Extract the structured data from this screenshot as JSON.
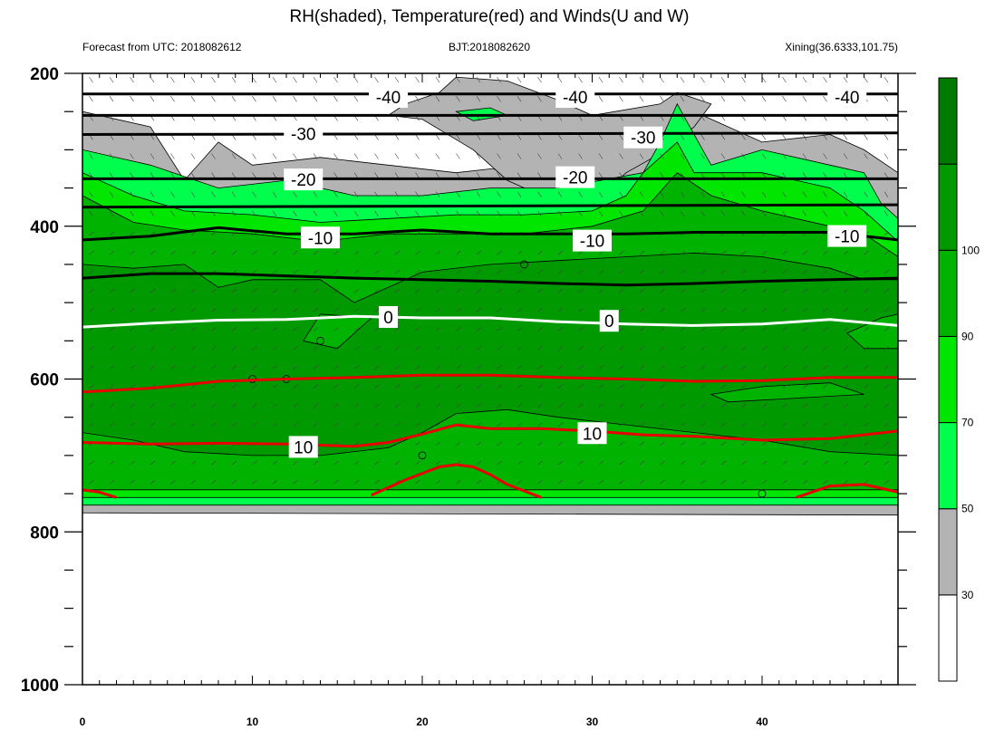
{
  "title": "RH(shaded), Temperature(red) and Winds(U and W)",
  "subtitle_left": "Forecast from UTC: 2018082612",
  "subtitle_center": "BJT:2018082620",
  "subtitle_right": "Xining(36.6333,101.75)",
  "chart_data": {
    "type": "heatmap",
    "description_of_axes": "x = forecast hour, y = pressure (hPa, reversed)",
    "x_ticks": [
      "0",
      "10",
      "20",
      "30",
      "40"
    ],
    "x_tick_values": [
      0,
      10,
      20,
      30,
      40
    ],
    "xlim": [
      0,
      48
    ],
    "y_ticks": [
      "200",
      "400",
      "600",
      "800",
      "1000"
    ],
    "y_tick_values": [
      200,
      400,
      600,
      800,
      1000
    ],
    "ylim": [
      200,
      1000
    ],
    "y_reversed": true,
    "colorbar": {
      "labels": [
        "30",
        "50",
        "70",
        "90",
        "100"
      ],
      "levels": [
        30,
        50,
        70,
        90,
        100
      ],
      "colors": [
        "#ffffff",
        "#b3b3b3",
        "#00ff4d",
        "#00e600",
        "#00b300",
        "#009900",
        "#007a00"
      ]
    },
    "rh_regions": [
      {
        "class": "gray",
        "points": [
          [
            0,
            250
          ],
          [
            4,
            270
          ],
          [
            6,
            340
          ],
          [
            8,
            290
          ],
          [
            10,
            320
          ],
          [
            14,
            310
          ],
          [
            18,
            320
          ],
          [
            22,
            330
          ],
          [
            24,
            325
          ],
          [
            28,
            330
          ],
          [
            30,
            320
          ],
          [
            32,
            290
          ],
          [
            35,
            240
          ],
          [
            37,
            260
          ],
          [
            40,
            290
          ],
          [
            44,
            280
          ],
          [
            46,
            300
          ],
          [
            48,
            330
          ],
          [
            48,
            778
          ],
          [
            0,
            775
          ]
        ]
      },
      {
        "class": "gray",
        "points": [
          [
            21,
            225
          ],
          [
            22,
            205
          ],
          [
            25,
            210
          ],
          [
            28,
            235
          ],
          [
            30,
            255
          ],
          [
            34,
            240
          ],
          [
            35,
            225
          ],
          [
            37,
            240
          ],
          [
            36,
            270
          ],
          [
            34,
            305
          ],
          [
            32,
            330
          ],
          [
            30,
            370
          ],
          [
            27,
            360
          ],
          [
            25,
            340
          ],
          [
            23,
            300
          ],
          [
            20,
            260
          ],
          [
            18,
            255
          ],
          [
            19,
            240
          ]
        ]
      },
      {
        "class": "c50",
        "points": [
          [
            0,
            300
          ],
          [
            4,
            320
          ],
          [
            8,
            350
          ],
          [
            12,
            340
          ],
          [
            16,
            360
          ],
          [
            20,
            360
          ],
          [
            24,
            350
          ],
          [
            28,
            350
          ],
          [
            33,
            330
          ],
          [
            34,
            290
          ],
          [
            35,
            240
          ],
          [
            37,
            320
          ],
          [
            40,
            300
          ],
          [
            44,
            320
          ],
          [
            46,
            330
          ],
          [
            47,
            370
          ],
          [
            48,
            390
          ],
          [
            48,
            765
          ],
          [
            0,
            765
          ]
        ]
      },
      {
        "class": "c50",
        "points": [
          [
            22,
            250
          ],
          [
            24,
            245
          ],
          [
            25,
            255
          ],
          [
            23,
            262
          ]
        ]
      },
      {
        "class": "c70",
        "points": [
          [
            0,
            330
          ],
          [
            3,
            360
          ],
          [
            6,
            380
          ],
          [
            10,
            385
          ],
          [
            14,
            395
          ],
          [
            18,
            390
          ],
          [
            22,
            385
          ],
          [
            26,
            385
          ],
          [
            30,
            380
          ],
          [
            32,
            360
          ],
          [
            33,
            330
          ],
          [
            35,
            290
          ],
          [
            36,
            330
          ],
          [
            40,
            330
          ],
          [
            44,
            350
          ],
          [
            46,
            380
          ],
          [
            48,
            420
          ],
          [
            48,
            755
          ],
          [
            0,
            755
          ]
        ]
      },
      {
        "class": "c90",
        "points": [
          [
            0,
            360
          ],
          [
            3,
            395
          ],
          [
            6,
            405
          ],
          [
            10,
            410
          ],
          [
            14,
            420
          ],
          [
            18,
            410
          ],
          [
            22,
            410
          ],
          [
            26,
            410
          ],
          [
            30,
            400
          ],
          [
            33,
            380
          ],
          [
            35,
            330
          ],
          [
            37,
            360
          ],
          [
            40,
            380
          ],
          [
            44,
            400
          ],
          [
            46,
            410
          ],
          [
            48,
            440
          ],
          [
            48,
            745
          ],
          [
            0,
            745
          ]
        ]
      },
      {
        "class": "c100",
        "points": [
          [
            0,
            450
          ],
          [
            3,
            455
          ],
          [
            6,
            450
          ],
          [
            8,
            480
          ],
          [
            10,
            470
          ],
          [
            14,
            470
          ],
          [
            16,
            500
          ],
          [
            18,
            480
          ],
          [
            20,
            460
          ],
          [
            24,
            450
          ],
          [
            28,
            445
          ],
          [
            32,
            440
          ],
          [
            36,
            435
          ],
          [
            40,
            440
          ],
          [
            44,
            455
          ],
          [
            46,
            470
          ],
          [
            48,
            470
          ],
          [
            48,
            700
          ],
          [
            44,
            695
          ],
          [
            40,
            680
          ],
          [
            36,
            670
          ],
          [
            32,
            660
          ],
          [
            28,
            650
          ],
          [
            25,
            640
          ],
          [
            22,
            645
          ],
          [
            20,
            670
          ],
          [
            18,
            690
          ],
          [
            14,
            700
          ],
          [
            10,
            700
          ],
          [
            6,
            695
          ],
          [
            3,
            680
          ],
          [
            0,
            670
          ]
        ]
      },
      {
        "class": "c90",
        "points": [
          [
            14,
            515
          ],
          [
            17,
            520
          ],
          [
            15,
            560
          ],
          [
            13,
            550
          ]
        ]
      },
      {
        "class": "c90",
        "points": [
          [
            37,
            620
          ],
          [
            40,
            610
          ],
          [
            44,
            605
          ],
          [
            46,
            620
          ],
          [
            42,
            625
          ],
          [
            38,
            630
          ]
        ]
      },
      {
        "class": "c90",
        "points": [
          [
            45,
            540
          ],
          [
            47,
            520
          ],
          [
            48,
            515
          ],
          [
            48,
            560
          ],
          [
            46,
            560
          ]
        ]
      }
    ],
    "temperature_red": [
      {
        "level": 10,
        "x": [
          0,
          4,
          8,
          12,
          16,
          20,
          24,
          28,
          32,
          36,
          40,
          44,
          48
        ],
        "y": [
          617,
          612,
          603,
          600,
          598,
          595,
          595,
          598,
          600,
          603,
          602,
          598,
          598
        ]
      },
      {
        "level": 10,
        "x": [
          0,
          4,
          8,
          12,
          16,
          18,
          20,
          22,
          24,
          27,
          30,
          33,
          36,
          40,
          44,
          48
        ],
        "y": [
          683,
          685,
          684,
          685,
          688,
          683,
          672,
          660,
          665,
          665,
          668,
          673,
          675,
          680,
          678,
          668
        ]
      },
      {
        "level": 10,
        "x": [
          17,
          19,
          21,
          22,
          23,
          24,
          25,
          27
        ],
        "y": [
          752,
          732,
          715,
          712,
          715,
          725,
          738,
          755
        ]
      },
      {
        "level": 10,
        "x": [
          0,
          1,
          2
        ],
        "y": [
          745,
          748,
          755
        ]
      },
      {
        "level": 10,
        "x": [
          42,
          44,
          46,
          48
        ],
        "y": [
          755,
          740,
          738,
          748
        ]
      }
    ],
    "temperature_black": [
      {
        "level": -40,
        "x": [
          0,
          48
        ],
        "y": [
          227,
          227
        ]
      },
      {
        "level": -40,
        "x": [
          0,
          48
        ],
        "y": [
          255,
          255
        ]
      },
      {
        "level": -30,
        "x": [
          0,
          48
        ],
        "y": [
          280,
          278
        ]
      },
      {
        "level": -20,
        "x": [
          0,
          48
        ],
        "y": [
          338,
          338
        ]
      },
      {
        "level": -20,
        "x": [
          0,
          48
        ],
        "y": [
          375,
          372
        ]
      },
      {
        "level": -10,
        "x": [
          0,
          4,
          8,
          12,
          16,
          20,
          24,
          28,
          32,
          36,
          40,
          44,
          48
        ],
        "y": [
          418,
          413,
          402,
          410,
          410,
          405,
          410,
          410,
          410,
          408,
          408,
          408,
          418
        ]
      },
      {
        "level": -10,
        "x": [
          0,
          4,
          8,
          12,
          16,
          20,
          24,
          28,
          32,
          36,
          40,
          44,
          48
        ],
        "y": [
          468,
          462,
          462,
          465,
          468,
          470,
          472,
          475,
          477,
          475,
          472,
          470,
          468
        ]
      }
    ],
    "zero_isotherm": {
      "level": 0,
      "x": [
        0,
        4,
        8,
        12,
        16,
        20,
        24,
        28,
        32,
        36,
        40,
        44,
        48
      ],
      "y": [
        532,
        527,
        523,
        522,
        518,
        520,
        520,
        525,
        528,
        530,
        528,
        522,
        530
      ]
    },
    "contour_labels": [
      {
        "text": "-40",
        "x": 18,
        "y": 232
      },
      {
        "text": "-40",
        "x": 29,
        "y": 232
      },
      {
        "text": "-40",
        "x": 45,
        "y": 232
      },
      {
        "text": "-30",
        "x": 13,
        "y": 280
      },
      {
        "text": "-30",
        "x": 33,
        "y": 285
      },
      {
        "text": "-20",
        "x": 13,
        "y": 340
      },
      {
        "text": "-20",
        "x": 29,
        "y": 337
      },
      {
        "text": "-10",
        "x": 14,
        "y": 416
      },
      {
        "text": "-10",
        "x": 30,
        "y": 420
      },
      {
        "text": "-10",
        "x": 45,
        "y": 414
      },
      {
        "text": "0",
        "x": 18,
        "y": 520
      },
      {
        "text": "0",
        "x": 31,
        "y": 525
      },
      {
        "text": "10",
        "x": 13,
        "y": 690
      },
      {
        "text": "10",
        "x": 30,
        "y": 672
      }
    ],
    "calm_markers": [
      [
        10,
        600
      ],
      [
        12,
        600
      ],
      [
        14,
        550
      ],
      [
        20,
        700
      ],
      [
        26,
        450
      ],
      [
        40,
        750
      ]
    ]
  }
}
